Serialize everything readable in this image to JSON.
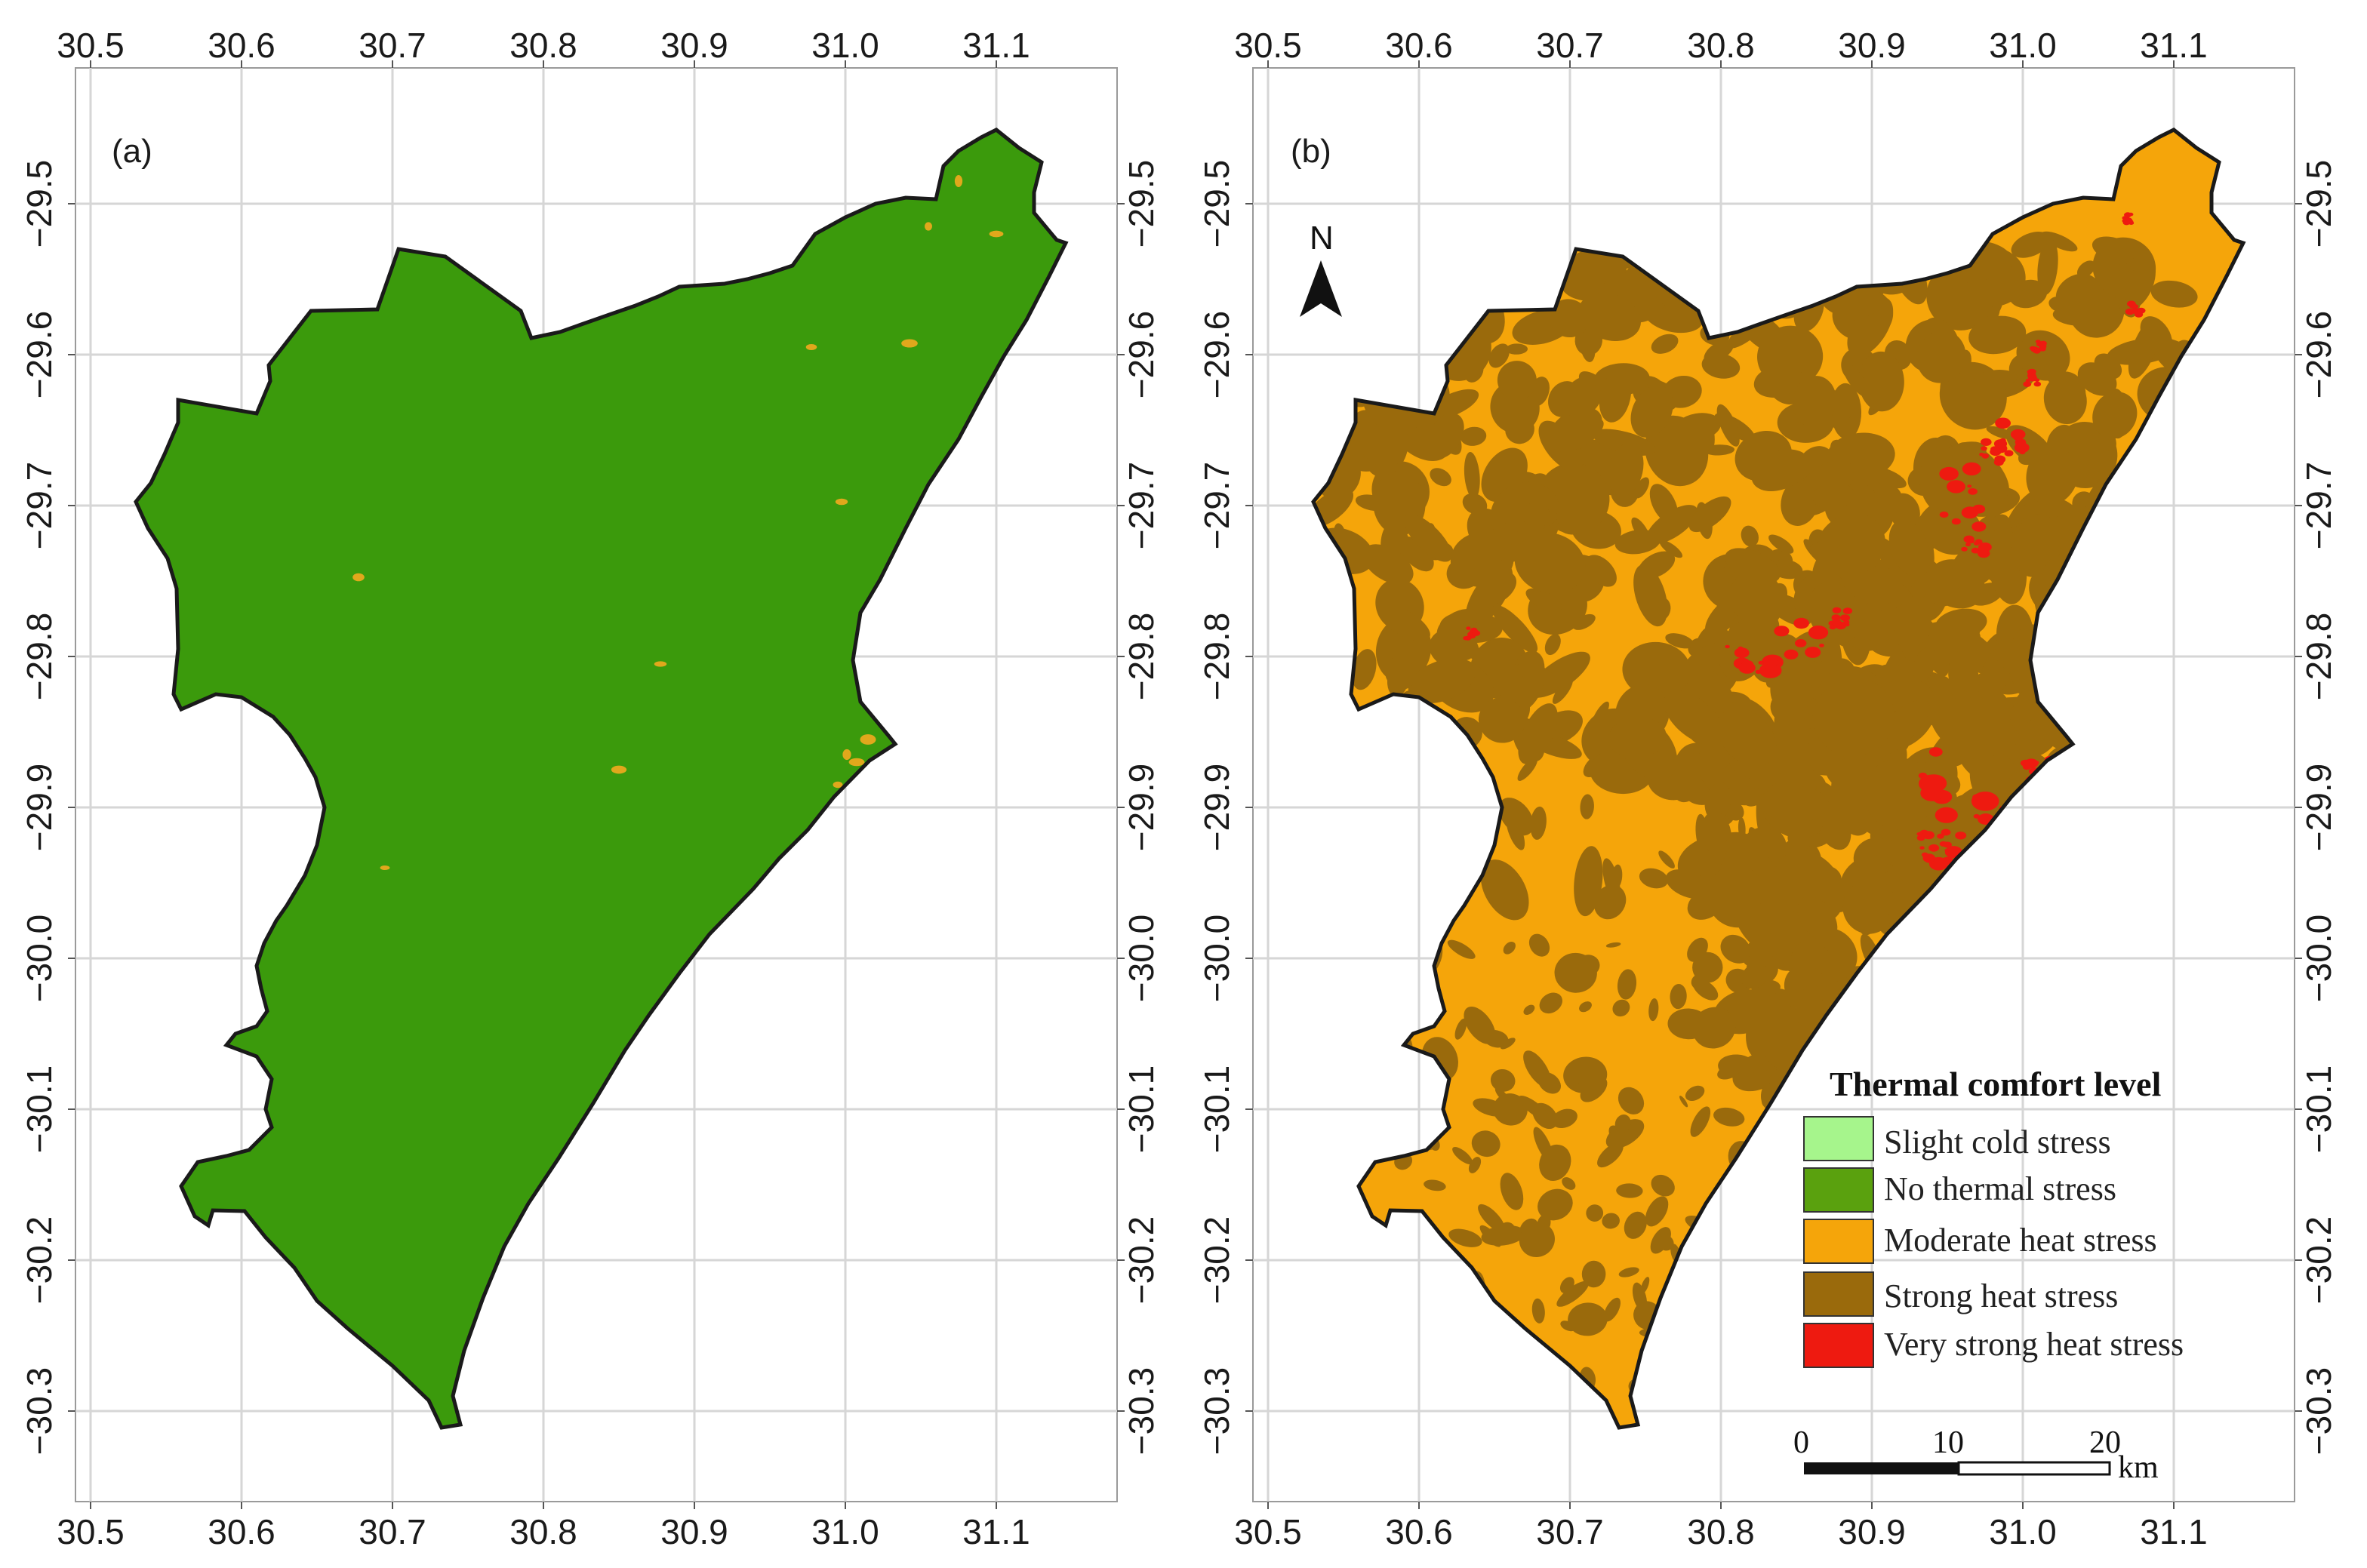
{
  "colors": {
    "panel_a_fill": "#3b9a0c",
    "panel_b_fill": "#f5a50a",
    "strong": "#9a6a0c",
    "very_strong": "#ee1a10",
    "moderate_spot": "#e0a81c",
    "outline": "#1a1a1a",
    "grid": "#d6d6d6"
  },
  "panels": [
    {
      "id": "a",
      "label": "(a)"
    },
    {
      "id": "b",
      "label": "(b)"
    }
  ],
  "axes": {
    "x_ticks": [
      30.5,
      30.6,
      30.7,
      30.8,
      30.9,
      31.0,
      31.1
    ],
    "x_tick_labels": [
      "30.5",
      "30.6",
      "30.7",
      "30.8",
      "30.9",
      "31.0",
      "31.1"
    ],
    "y_ticks": [
      -29.5,
      -29.6,
      -29.7,
      -29.8,
      -29.9,
      -30.0,
      -30.1,
      -30.2,
      -30.3
    ],
    "y_tick_labels": [
      "−29.5",
      "−29.6",
      "−29.7",
      "−29.8",
      "−29.9",
      "−30.0",
      "−30.1",
      "−30.2",
      "−30.3"
    ],
    "lon_range": [
      30.49,
      31.18
    ],
    "lat_range": [
      -29.42,
      -30.36
    ],
    "grid": true
  },
  "north_arrow": {
    "label": "N",
    "panel": "b"
  },
  "legend": {
    "panel": "b",
    "title": "Thermal comfort level",
    "items": [
      {
        "label": "Slight cold stress",
        "color": "#a6f58c"
      },
      {
        "label": "No thermal stress",
        "color": "#5aa10e"
      },
      {
        "label": "Moderate heat stress",
        "color": "#f5a50a"
      },
      {
        "label": "Strong heat stress",
        "color": "#9a6a0c"
      },
      {
        "label": "Very strong heat stress",
        "color": "#ee1a10"
      }
    ]
  },
  "scale_bar": {
    "labels": [
      "0",
      "10",
      "20"
    ],
    "unit": "km"
  }
}
